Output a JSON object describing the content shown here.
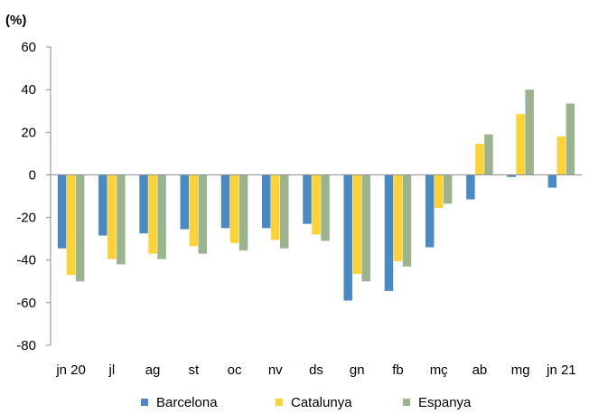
{
  "chart_data": {
    "type": "bar",
    "unit_label": "(%)",
    "categories": [
      "jn 20",
      "jl",
      "ag",
      "st",
      "oc",
      "nv",
      "ds",
      "gn",
      "fb",
      "mç",
      "ab",
      "mg",
      "jn 21"
    ],
    "series": [
      {
        "name": "Barcelona",
        "color": "#4a8ac4",
        "values": [
          -34.5,
          -28.5,
          -27.5,
          -25.5,
          -25,
          -25,
          -23,
          -59,
          -54.5,
          -34,
          -11.5,
          -1,
          -6
        ]
      },
      {
        "name": "Catalunya",
        "color": "#fdd234",
        "values": [
          -47,
          -39.5,
          -37,
          -33.5,
          -32,
          -30.5,
          -28,
          -46.5,
          -40.5,
          -15.5,
          14.5,
          28.5,
          18
        ]
      },
      {
        "name": "Espanya",
        "color": "#9ab48e",
        "values": [
          -50,
          -42,
          -39.5,
          -37,
          -35.5,
          -34.5,
          -31,
          -50,
          -43,
          -13.5,
          19,
          40,
          33.5
        ]
      }
    ],
    "yticks": [
      60,
      40,
      20,
      0,
      -20,
      -40,
      -60,
      -80
    ],
    "ylim": [
      -80,
      60
    ],
    "grid": false,
    "legend_position": "bottom"
  }
}
